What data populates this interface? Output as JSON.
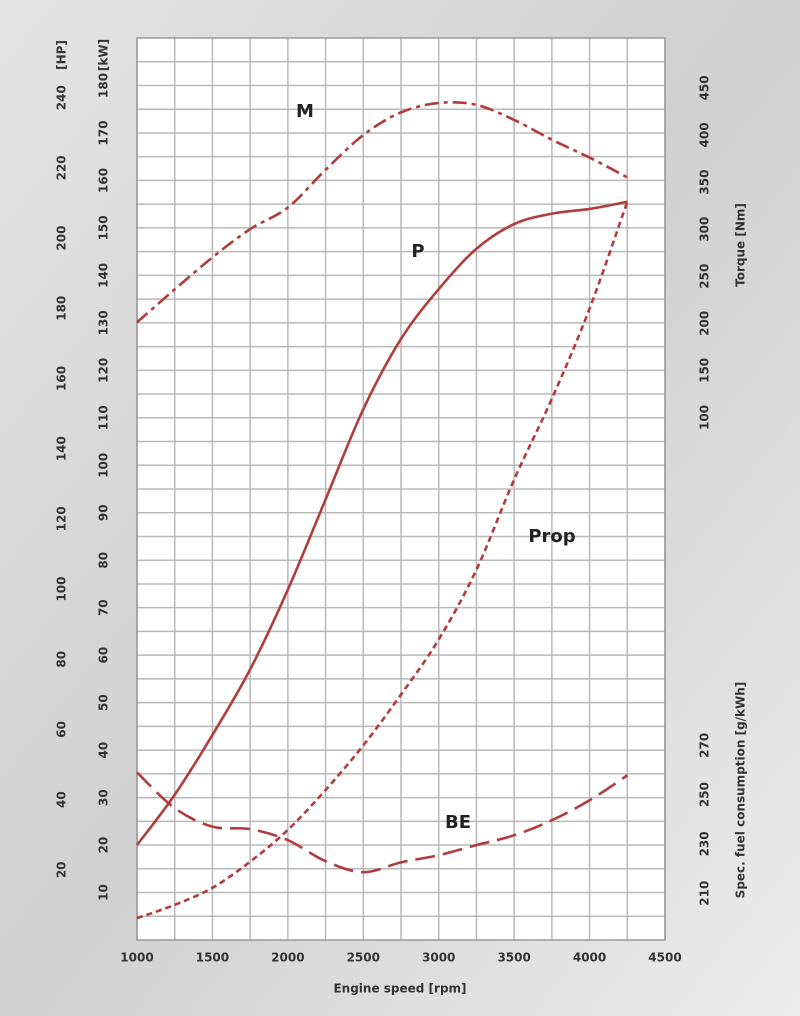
{
  "chart_data": {
    "type": "line",
    "xlabel": "Engine speed [rpm]",
    "xlim": [
      1000,
      4500
    ],
    "xticks": [
      1000,
      1500,
      2000,
      2500,
      3000,
      3500,
      4000,
      4500
    ],
    "xticks_minor": [
      1250,
      1750,
      2250,
      2750,
      3250,
      3750,
      4250
    ],
    "grid": true,
    "y_axes": [
      {
        "label": "[HP]",
        "side": "left",
        "lim": [
          0,
          257
        ],
        "ticks": [
          20,
          40,
          60,
          80,
          100,
          120,
          140,
          160,
          180,
          200,
          220,
          240
        ]
      },
      {
        "label": "[kW]",
        "side": "left",
        "lim": [
          0,
          190
        ],
        "ticks": [
          10,
          20,
          30,
          40,
          50,
          60,
          70,
          80,
          90,
          100,
          110,
          120,
          130,
          140,
          150,
          160,
          170,
          180
        ],
        "ticks_minor": [
          5,
          15,
          25,
          35,
          45,
          55,
          65,
          75,
          85,
          95,
          105,
          115,
          125,
          135,
          145,
          155,
          165,
          175,
          185
        ]
      },
      {
        "label": "Torque [Nm]",
        "side": "right",
        "lim": [
          -455,
          503
        ],
        "ticks": [
          100,
          150,
          200,
          250,
          300,
          350,
          400,
          450
        ]
      },
      {
        "label": "Spec. fuel consumption [g/kWh]",
        "side": "right",
        "lim": [
          191,
          557
        ],
        "ticks": [
          210,
          230,
          250,
          270
        ]
      }
    ],
    "x": [
      1000,
      1250,
      1500,
      1750,
      2000,
      2250,
      2500,
      2750,
      3000,
      3250,
      3500,
      3750,
      4000,
      4250
    ],
    "series": [
      {
        "name": "M",
        "axis": 2,
        "color": "#b03c3c",
        "dash": "dash-dot",
        "values": [
          201,
          236,
          270,
          300,
          323,
          363,
          400,
          424,
          434,
          432,
          416,
          395,
          376,
          355
        ]
      },
      {
        "name": "P",
        "axis": 1,
        "color": "#b03c3c",
        "dash": "solid",
        "values": [
          20,
          30.6,
          43.2,
          57,
          73.8,
          92.8,
          111.8,
          126.6,
          137.1,
          145.6,
          150.8,
          153,
          154,
          155.5
        ]
      },
      {
        "name": "Prop",
        "axis": 1,
        "color": "#b03c3c",
        "dash": "short-dash",
        "values": [
          4.6,
          7.4,
          11,
          16.5,
          23.2,
          31.6,
          41,
          51.7,
          63.3,
          78,
          97,
          114,
          133,
          155.5
        ]
      },
      {
        "name": "BE",
        "axis": 3,
        "color": "#b03c3c",
        "dash": "long-dash",
        "values": [
          259,
          244.5,
          237,
          236,
          231.5,
          223,
          218.5,
          222.5,
          225.4,
          229.5,
          233.5,
          239.6,
          247.7,
          257.8
        ]
      }
    ]
  }
}
